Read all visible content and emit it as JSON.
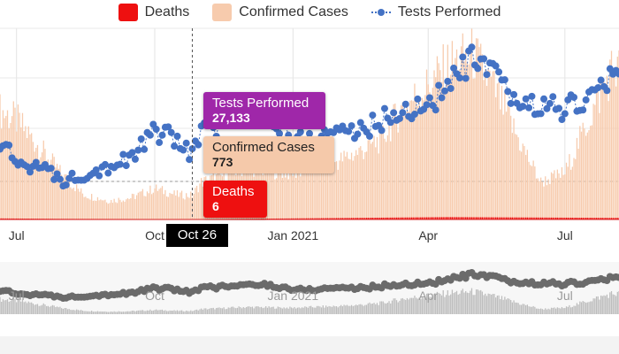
{
  "legend": [
    {
      "label": "Deaths",
      "color": "#ee1010"
    },
    {
      "label": "Confirmed Cases",
      "color": "#f7cbad"
    },
    {
      "label": "Tests Performed",
      "color": "#4472c4"
    }
  ],
  "tooltip": {
    "tests_label": "Tests Performed",
    "tests_value": "27,133",
    "cases_label": "Confirmed Cases",
    "cases_value": "773",
    "deaths_label": "Deaths",
    "deaths_value": "6",
    "date": "Oct 26"
  },
  "colors": {
    "deaths": "#ee1010",
    "cases": "#f7cbad",
    "tests": "#4472c4",
    "tests_tooltip": "#9f27a9",
    "navigator_points": "#6b6b6b",
    "navigator_bars": "#bdbdbd"
  },
  "chart_data": {
    "type": "bar",
    "title": "",
    "xlabel": "",
    "ylabel": "",
    "x_range": [
      "2020-06-20",
      "2021-08-06"
    ],
    "x_ticks": [
      {
        "date": "2020-07-01",
        "label": "Jul"
      },
      {
        "date": "2020-10-01",
        "label": "Oct"
      },
      {
        "date": "2021-01-01",
        "label": "Jan 2021"
      },
      {
        "date": "2021-04-01",
        "label": "Apr"
      },
      {
        "date": "2021-07-01",
        "label": "Jul"
      }
    ],
    "grid": true,
    "legend_position": "top",
    "highlight": {
      "date": "2020-10-26",
      "label": "Oct 26"
    },
    "series": [
      {
        "name": "Confirmed Cases",
        "kind": "bar",
        "x": [
          "2020-06-20",
          "2020-07-01",
          "2020-07-15",
          "2020-08-01",
          "2020-08-15",
          "2020-09-01",
          "2020-09-15",
          "2020-10-01",
          "2020-10-15",
          "2020-10-26",
          "2020-11-01",
          "2020-11-15",
          "2020-12-01",
          "2020-12-15",
          "2021-01-01",
          "2021-01-15",
          "2021-02-01",
          "2021-02-15",
          "2021-03-01",
          "2021-03-15",
          "2021-04-01",
          "2021-04-15",
          "2021-05-01",
          "2021-05-15",
          "2021-06-01",
          "2021-06-15",
          "2021-07-01",
          "2021-07-15",
          "2021-08-01"
        ],
        "values": [
          3500,
          3200,
          2400,
          1400,
          800,
          600,
          700,
          1000,
          800,
          773,
          1200,
          1400,
          1700,
          1600,
          1500,
          1700,
          1900,
          2200,
          2600,
          3600,
          4300,
          5000,
          5300,
          4200,
          2500,
          1200,
          1500,
          3000,
          4800
        ]
      },
      {
        "name": "Deaths",
        "kind": "bar",
        "x": [
          "2020-06-20",
          "2020-08-01",
          "2020-10-26",
          "2021-01-01",
          "2021-04-15",
          "2021-08-01"
        ],
        "values": [
          20,
          12,
          6,
          20,
          45,
          30
        ]
      },
      {
        "name": "Tests Performed",
        "kind": "line",
        "x": [
          "2020-06-20",
          "2020-07-01",
          "2020-07-15",
          "2020-08-01",
          "2020-08-15",
          "2020-09-01",
          "2020-09-15",
          "2020-10-01",
          "2020-10-15",
          "2020-10-26",
          "2020-11-01",
          "2020-11-15",
          "2020-12-01",
          "2020-12-15",
          "2021-01-01",
          "2021-01-15",
          "2021-02-01",
          "2021-02-15",
          "2021-03-01",
          "2021-03-15",
          "2021-04-01",
          "2021-04-15",
          "2021-05-01",
          "2021-05-15",
          "2021-06-01",
          "2021-06-15",
          "2021-07-01",
          "2021-07-15",
          "2021-08-01"
        ],
        "values": [
          30000,
          25000,
          24000,
          20000,
          22000,
          24000,
          26000,
          33000,
          31000,
          27133,
          33000,
          35000,
          37000,
          38000,
          31000,
          31000,
          34000,
          33000,
          36000,
          38000,
          40000,
          45000,
          52000,
          47000,
          40000,
          40000,
          39000,
          41000,
          47000
        ]
      }
    ]
  }
}
